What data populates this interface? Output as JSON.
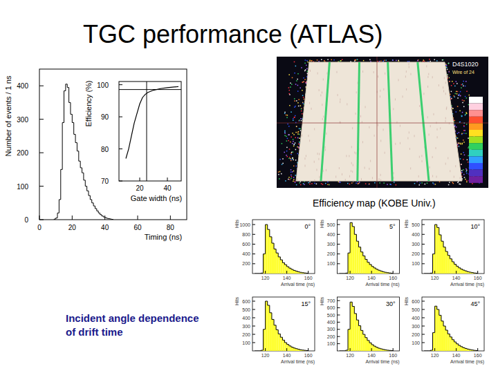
{
  "slide": {
    "title": "TGC performance (ATLAS)",
    "angle_caption": [
      "Incident angle dependence",
      "of drift time"
    ]
  },
  "efficiency_map": {
    "labels": [
      "D4S1020",
      "Wire of 24"
    ],
    "caption": "Efficiency map (KOBE Univ.)"
  },
  "chart_data": [
    {
      "type": "histogram",
      "x_label": "Timing (ns)",
      "y_label": "Number of events / 1 ns",
      "color": "#000000",
      "bins": [
        9,
        10,
        11,
        12,
        13,
        14,
        15,
        16,
        17,
        18,
        19,
        20,
        21,
        22,
        23,
        24,
        25,
        26,
        27,
        28,
        29,
        30,
        31,
        32,
        33,
        34,
        35,
        36,
        37,
        38,
        39,
        40,
        41,
        42,
        43,
        44,
        45
      ],
      "values": [
        2,
        5,
        20,
        60,
        150,
        290,
        385,
        405,
        395,
        350,
        315,
        290,
        255,
        230,
        205,
        175,
        155,
        140,
        118,
        100,
        86,
        72,
        60,
        50,
        41,
        33,
        26,
        20,
        15,
        11,
        8,
        6,
        4,
        3,
        2,
        1
      ],
      "xlim": [
        0,
        90
      ],
      "xticks": [
        0,
        20,
        40,
        60,
        80
      ],
      "ylim": [
        0,
        450
      ],
      "yticks": [
        0,
        100,
        200,
        300,
        400
      ]
    },
    {
      "type": "line",
      "x_label": "Gate width (ns)",
      "y_label": "Efficiency (%)",
      "color": "#000000",
      "x": [
        10,
        12,
        14,
        16,
        18,
        20,
        22,
        24,
        26,
        30,
        35,
        40,
        45,
        48
      ],
      "values": [
        77,
        80,
        84,
        88,
        91,
        94,
        96,
        97,
        97.6,
        98.3,
        98.8,
        99.1,
        99.3,
        99.4
      ],
      "reference_x": 25,
      "reference_y": 98.5,
      "xlim": [
        5,
        50
      ],
      "xticks": [
        20,
        40
      ],
      "ylim": [
        70,
        101
      ],
      "yticks": [
        70,
        80,
        90,
        100
      ]
    },
    {
      "type": "histogram",
      "title": "0°",
      "x_label": "Arrival time (ns)",
      "y_label": "Hits",
      "color": "#ffff33",
      "bins": [
        110,
        112,
        114,
        116,
        118,
        120,
        122,
        124,
        126,
        128,
        130,
        132,
        134,
        136,
        138,
        140,
        142,
        144,
        146,
        148,
        150,
        152,
        154,
        156,
        158,
        160
      ],
      "values": [
        0,
        0,
        0,
        10,
        400,
        1000,
        900,
        750,
        620,
        500,
        420,
        340,
        280,
        220,
        180,
        140,
        110,
        85,
        65,
        50,
        35,
        25,
        18,
        12,
        8
      ],
      "xlim": [
        108,
        166
      ],
      "xticks": [
        120,
        140,
        160
      ],
      "ylim": [
        0,
        1100
      ],
      "yticks": [
        200,
        400,
        600,
        800,
        1000
      ]
    },
    {
      "type": "histogram",
      "title": "5°",
      "x_label": "Arrival time (ns)",
      "y_label": "Hits",
      "color": "#ffff33",
      "bins": [
        110,
        112,
        114,
        116,
        118,
        120,
        122,
        124,
        126,
        128,
        130,
        132,
        134,
        136,
        138,
        140,
        142,
        144,
        146,
        148,
        150,
        152,
        154,
        156,
        158,
        160
      ],
      "values": [
        0,
        0,
        0,
        5,
        210,
        520,
        480,
        400,
        330,
        270,
        220,
        180,
        145,
        115,
        92,
        72,
        57,
        44,
        34,
        26,
        18,
        13,
        9,
        6,
        4
      ],
      "xlim": [
        108,
        166
      ],
      "xticks": [
        120,
        140,
        160
      ],
      "ylim": [
        0,
        550
      ],
      "yticks": [
        100,
        200,
        300,
        400,
        500
      ]
    },
    {
      "type": "histogram",
      "title": "10°",
      "x_label": "Arrival time (ns)",
      "y_label": "Hits",
      "color": "#ffff33",
      "bins": [
        110,
        112,
        114,
        116,
        118,
        120,
        122,
        124,
        126,
        128,
        130,
        132,
        134,
        136,
        138,
        140,
        142,
        144,
        146,
        148,
        150,
        152,
        154,
        156,
        158,
        160
      ],
      "values": [
        0,
        0,
        0,
        5,
        200,
        500,
        470,
        395,
        330,
        270,
        225,
        185,
        150,
        120,
        95,
        75,
        58,
        45,
        35,
        27,
        19,
        14,
        10,
        6,
        4
      ],
      "xlim": [
        108,
        166
      ],
      "xticks": [
        120,
        140,
        160
      ],
      "ylim": [
        0,
        550
      ],
      "yticks": [
        100,
        200,
        300,
        400,
        500
      ]
    },
    {
      "type": "histogram",
      "title": "15°",
      "x_label": "Arrival time (ns)",
      "y_label": "Hits",
      "color": "#ffff33",
      "bins": [
        110,
        112,
        114,
        116,
        118,
        120,
        122,
        124,
        126,
        128,
        130,
        132,
        134,
        136,
        138,
        140,
        142,
        144,
        146,
        148,
        150,
        152,
        154,
        156,
        158,
        160
      ],
      "values": [
        0,
        0,
        0,
        8,
        260,
        600,
        550,
        460,
        380,
        310,
        255,
        205,
        165,
        130,
        100,
        78,
        60,
        46,
        35,
        27,
        20,
        14,
        10,
        7,
        4
      ],
      "xlim": [
        108,
        166
      ],
      "xticks": [
        120,
        140,
        160
      ],
      "ylim": [
        0,
        650
      ],
      "yticks": [
        100,
        200,
        300,
        400,
        500,
        600
      ]
    },
    {
      "type": "histogram",
      "title": "30°",
      "x_label": "Arrival time (ns)",
      "y_label": "Hits",
      "color": "#ffff33",
      "bins": [
        110,
        112,
        114,
        116,
        118,
        120,
        122,
        124,
        126,
        128,
        130,
        132,
        134,
        136,
        138,
        140,
        142,
        144,
        146,
        148,
        150,
        152,
        154,
        156,
        158,
        160
      ],
      "values": [
        0,
        0,
        0,
        10,
        300,
        680,
        620,
        520,
        430,
        350,
        285,
        230,
        185,
        145,
        112,
        86,
        66,
        50,
        38,
        29,
        21,
        15,
        10,
        7,
        4
      ],
      "xlim": [
        108,
        166
      ],
      "xticks": [
        120,
        140,
        160
      ],
      "ylim": [
        0,
        750
      ],
      "yticks": [
        100,
        200,
        300,
        400,
        500,
        600,
        700
      ]
    },
    {
      "type": "histogram",
      "title": "45°",
      "x_label": "Arrival time (ns)",
      "y_label": "Hits",
      "color": "#ffff33",
      "bins": [
        110,
        112,
        114,
        116,
        118,
        120,
        122,
        124,
        126,
        128,
        130,
        132,
        134,
        136,
        138,
        140,
        142,
        144,
        146,
        148,
        150,
        152,
        154,
        156,
        158,
        160
      ],
      "values": [
        0,
        0,
        0,
        8,
        220,
        540,
        500,
        430,
        360,
        300,
        250,
        205,
        168,
        135,
        108,
        85,
        66,
        51,
        39,
        30,
        22,
        16,
        11,
        7,
        4
      ],
      "xlim": [
        108,
        166
      ],
      "xticks": [
        120,
        140,
        160
      ],
      "ylim": [
        0,
        650
      ],
      "yticks": [
        100,
        200,
        300,
        400,
        500,
        600
      ]
    }
  ]
}
